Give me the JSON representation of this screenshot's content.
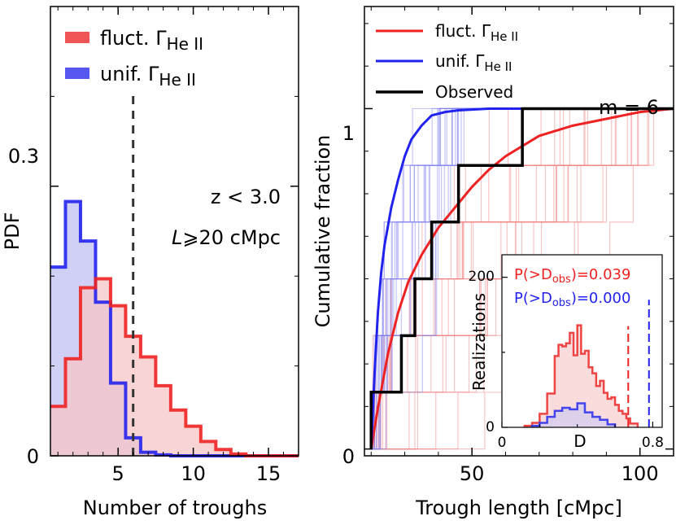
{
  "chart_data": [
    {
      "type": "bar",
      "panel": "left",
      "style": "step-histogram",
      "xlabel": "Number of troughs",
      "ylabel": "PDF",
      "xlim": [
        0.5,
        17
      ],
      "ylim": [
        0,
        0.5
      ],
      "xticks": [
        5,
        10,
        15
      ],
      "xtick_labels": [
        "5",
        "10",
        "15"
      ],
      "yticks": [
        0,
        0.3
      ],
      "ytick_labels": [
        "0",
        "0.3"
      ],
      "annotation_z": "z < 3.0",
      "annotation_L_sym": "L",
      "annotation_L_rest": "⩾20 cMpc",
      "vline_x": 6,
      "legend_position": "top-left",
      "bin_edges": [
        0.5,
        1.5,
        2.5,
        3.5,
        4.5,
        5.5,
        6.5,
        7.5,
        8.5,
        9.5,
        10.5,
        11.5,
        12.5,
        13.5,
        17
      ],
      "series": [
        {
          "name": "fluct.",
          "subscript": "He II",
          "color": "#ee2222",
          "fill": "#f7c5c5",
          "values": [
            0.055,
            0.108,
            0.187,
            0.197,
            0.167,
            0.133,
            0.11,
            0.078,
            0.051,
            0.033,
            0.016,
            0.007,
            0.002,
            0.0
          ]
        },
        {
          "name": "unif.",
          "subscript": "He II",
          "color": "#2222ee",
          "fill": "#c8c8f4",
          "values": [
            0.21,
            0.283,
            0.239,
            0.171,
            0.081,
            0.02,
            0.004,
            0.001,
            0.0,
            0.0,
            0.0,
            0.0,
            0.0,
            0.0
          ]
        }
      ]
    },
    {
      "type": "line",
      "panel": "right",
      "xlabel": "Trough length [cMpc]",
      "ylabel": "Cumulative fraction",
      "xlim": [
        18,
        110
      ],
      "ylim": [
        -0.02,
        1.3
      ],
      "xticks": [
        50,
        100
      ],
      "xtick_labels": [
        "50",
        "100"
      ],
      "yticks": [
        0,
        1
      ],
      "ytick_labels": [
        "0",
        "1"
      ],
      "annotation_m": "m = 6",
      "legend_position": "top-left",
      "series": [
        {
          "name": "fluct.",
          "subscript": "He II",
          "color": "#ee2222",
          "x": [
            20,
            22,
            25,
            28,
            31,
            35,
            40,
            45,
            50,
            55,
            60,
            65,
            70,
            80,
            90,
            100,
            110
          ],
          "y": [
            0.0,
            0.12,
            0.28,
            0.4,
            0.49,
            0.57,
            0.65,
            0.71,
            0.77,
            0.82,
            0.86,
            0.89,
            0.92,
            0.95,
            0.97,
            0.99,
            1.0
          ]
        },
        {
          "name": "unif.",
          "subscript": "He II",
          "color": "#2222ee",
          "x": [
            20,
            21,
            22,
            23,
            24,
            26,
            28,
            30,
            32,
            35,
            38,
            42,
            46,
            55,
            110
          ],
          "y": [
            0.0,
            0.22,
            0.4,
            0.52,
            0.6,
            0.71,
            0.79,
            0.86,
            0.91,
            0.95,
            0.98,
            0.99,
            0.995,
            1.0,
            1.0
          ]
        },
        {
          "name": "Observed",
          "subscript": "",
          "color": "#000000",
          "step": true,
          "x": [
            20,
            20,
            29,
            29,
            33,
            33,
            38,
            38,
            46,
            46,
            65,
            65,
            68,
            68,
            110
          ],
          "y": [
            0.0,
            0.167,
            0.167,
            0.333,
            0.333,
            0.5,
            0.5,
            0.667,
            0.667,
            0.833,
            0.833,
            1.0,
            1.0,
            1.0,
            1.0
          ]
        }
      ],
      "inset": {
        "xlabel": "D",
        "ylabel": "Realizations",
        "xlim": [
          0,
          0.85
        ],
        "ylim": [
          0,
          230
        ],
        "xticks": [
          0,
          0.8
        ],
        "xtick_labels": [
          "0",
          "0.8"
        ],
        "yticks": [
          0,
          200
        ],
        "ytick_labels": [
          "0",
          "200"
        ],
        "p_red_prefix": "P(>D",
        "p_red_sub": "obs",
        "p_red_value": ")=0.039",
        "p_blue_prefix": "P(>D",
        "p_blue_sub": "obs",
        "p_blue_value": ")=0.000",
        "red_vline": 0.67,
        "blue_vline": 0.78,
        "red_hist": {
          "edges": [
            0.12,
            0.16,
            0.2,
            0.24,
            0.28,
            0.3,
            0.32,
            0.34,
            0.36,
            0.38,
            0.4,
            0.42,
            0.44,
            0.46,
            0.48,
            0.5,
            0.52,
            0.54,
            0.56,
            0.58,
            0.6,
            0.62,
            0.64,
            0.66,
            0.68,
            0.72
          ],
          "values": [
            2,
            6,
            18,
            45,
            95,
            110,
            108,
            112,
            126,
            96,
            136,
            98,
            102,
            80,
            72,
            55,
            62,
            46,
            38,
            40,
            30,
            22,
            18,
            12,
            5
          ]
        },
        "blue_hist": {
          "edges": [
            0.16,
            0.2,
            0.24,
            0.28,
            0.32,
            0.36,
            0.4,
            0.44,
            0.48,
            0.52,
            0.56,
            0.6
          ],
          "values": [
            2,
            6,
            14,
            22,
            26,
            24,
            32,
            20,
            14,
            10,
            4
          ]
        }
      }
    }
  ]
}
